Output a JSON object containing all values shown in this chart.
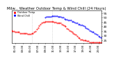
{
  "title": "Milw... Weather Outdoor Temp & Wind Chill (24 Hours)",
  "title_fontsize": 3.8,
  "legend_labels": [
    "Outdoor Temp",
    "Wind Chill"
  ],
  "legend_colors": [
    "red",
    "blue"
  ],
  "background_color": "#ffffff",
  "ylim": [
    22,
    58
  ],
  "ytick_values": [
    25,
    30,
    35,
    40,
    45,
    50,
    55
  ],
  "ytick_labels": [
    "25",
    "30",
    "35",
    "40",
    "45",
    "50",
    "55"
  ],
  "vline_x": [
    32,
    64
  ],
  "n_points": 144,
  "red_x": [
    0,
    2,
    4,
    6,
    8,
    10,
    12,
    14,
    16,
    18,
    20,
    22,
    24,
    26,
    28,
    30,
    32,
    34,
    36,
    38,
    40,
    42,
    44,
    46,
    48,
    50,
    52,
    54,
    56,
    58,
    60,
    62,
    64,
    66,
    68,
    70,
    72,
    74,
    76,
    78,
    80,
    82,
    84,
    86,
    88,
    90,
    92,
    94,
    96,
    98,
    100,
    102,
    104,
    106,
    108,
    110,
    112,
    114,
    116,
    118,
    120,
    122,
    124,
    126,
    128,
    130,
    132,
    134,
    136,
    138,
    140,
    142
  ],
  "red_y": [
    36,
    35,
    35,
    34,
    34,
    34,
    34,
    33,
    33,
    33,
    33,
    33,
    33,
    32,
    32,
    32,
    33,
    33,
    34,
    35,
    37,
    39,
    41,
    43,
    44,
    45,
    45,
    46,
    46,
    46,
    46,
    46,
    46,
    46,
    45,
    45,
    44,
    44,
    44,
    44,
    43,
    42,
    41,
    40,
    38,
    37,
    36,
    35,
    34,
    33,
    32,
    31,
    30,
    28,
    27,
    26,
    26,
    25,
    25,
    25,
    24,
    24,
    23,
    23,
    23,
    23,
    23,
    23,
    23,
    23,
    23,
    23
  ],
  "blue_x": [
    54,
    56,
    58,
    60,
    62,
    64,
    66,
    68,
    70,
    72,
    74,
    76,
    78,
    80,
    82,
    84,
    86,
    88,
    90,
    92,
    94,
    96,
    98,
    100,
    102,
    104,
    106,
    108,
    110,
    112,
    114,
    116,
    118,
    120,
    122,
    124,
    126,
    128,
    130,
    132,
    134,
    136,
    138,
    140,
    142
  ],
  "blue_y": [
    50,
    51,
    51,
    51,
    51,
    52,
    52,
    52,
    52,
    52,
    51,
    51,
    51,
    50,
    50,
    49,
    48,
    48,
    47,
    47,
    47,
    46,
    46,
    45,
    44,
    44,
    43,
    43,
    42,
    42,
    41,
    40,
    39,
    38,
    37,
    36,
    35,
    34,
    34,
    33,
    32,
    31,
    30,
    29,
    28
  ],
  "xtick_step": 12,
  "xtick_labels": [
    "01:00",
    "03:00",
    "05:00",
    "07:00",
    "09:00",
    "11:00",
    "13:00",
    "15:00",
    "17:00",
    "19:00",
    "21:00",
    "23:00"
  ],
  "xtick_positions": [
    6,
    18,
    30,
    42,
    54,
    66,
    78,
    90,
    102,
    114,
    126,
    138
  ],
  "xtick_fontsize": 2.8,
  "ytick_fontsize": 3.2,
  "markersize": 0.9,
  "vline_color": "#aaaaaa",
  "vline_style": ":"
}
